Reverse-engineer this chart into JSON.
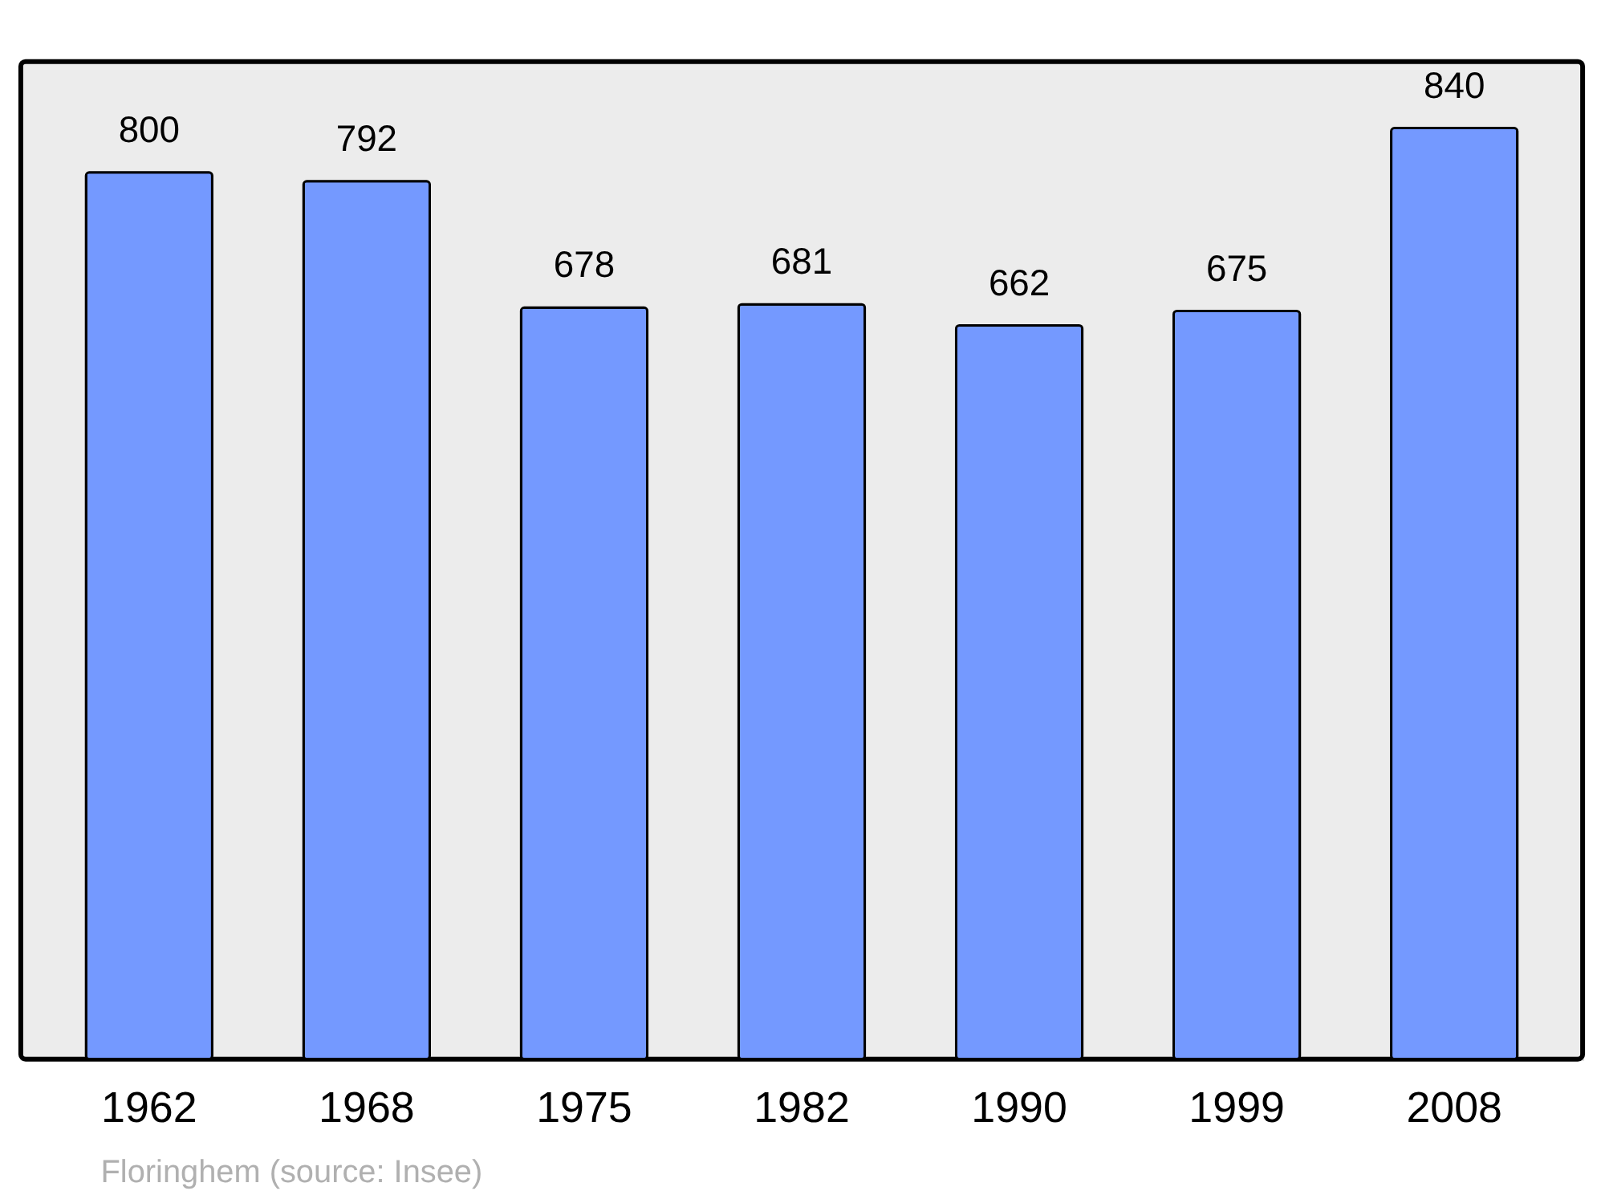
{
  "chart_data": {
    "type": "bar",
    "categories": [
      "1962",
      "1968",
      "1975",
      "1982",
      "1990",
      "1999",
      "2008"
    ],
    "values": [
      800,
      792,
      678,
      681,
      662,
      675,
      840
    ],
    "color": "#7499ff",
    "data_labels": true,
    "annotations": [
      "Floringhem    (source: Insee)"
    ]
  }
}
